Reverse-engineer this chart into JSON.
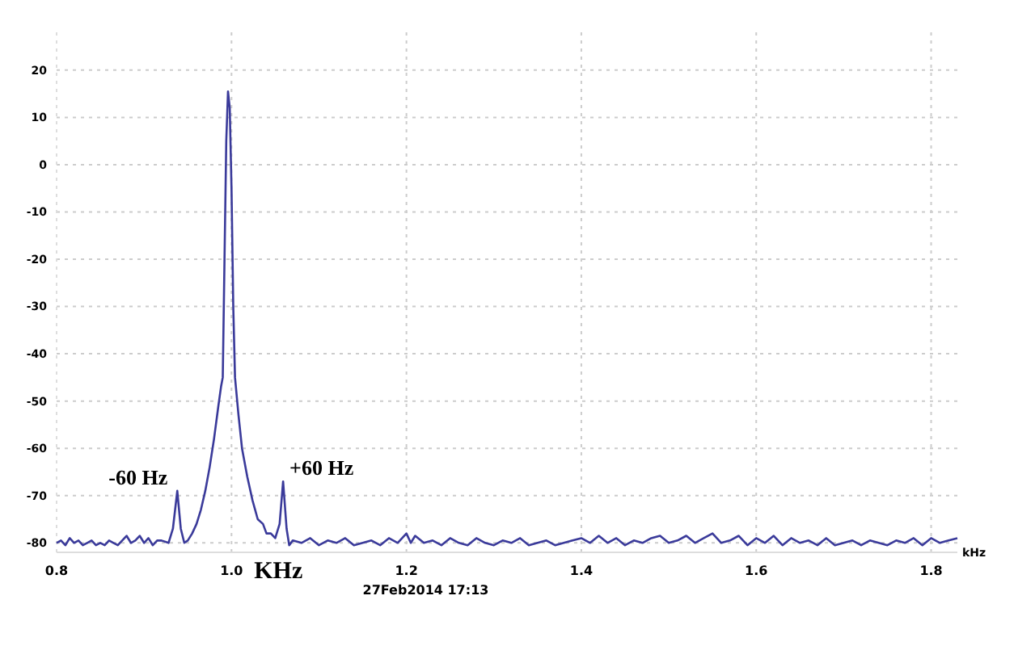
{
  "chart_data": {
    "type": "line",
    "xlabel": "kHz",
    "x": [
      0.8,
      0.805,
      0.81,
      0.815,
      0.82,
      0.825,
      0.83,
      0.835,
      0.84,
      0.845,
      0.85,
      0.855,
      0.86,
      0.865,
      0.87,
      0.875,
      0.88,
      0.885,
      0.89,
      0.895,
      0.9,
      0.905,
      0.91,
      0.915,
      0.92,
      0.928,
      0.933,
      0.938,
      0.942,
      0.946,
      0.95,
      0.955,
      0.96,
      0.965,
      0.97,
      0.975,
      0.98,
      0.985,
      0.988,
      0.99,
      0.992,
      0.994,
      0.996,
      0.998,
      1.0,
      1.002,
      1.004,
      1.008,
      1.012,
      1.018,
      1.024,
      1.03,
      1.036,
      1.04,
      1.045,
      1.05,
      1.055,
      1.059,
      1.063,
      1.066,
      1.07,
      1.08,
      1.09,
      1.1,
      1.11,
      1.12,
      1.13,
      1.14,
      1.15,
      1.16,
      1.17,
      1.18,
      1.19,
      1.2,
      1.205,
      1.21,
      1.22,
      1.23,
      1.24,
      1.25,
      1.26,
      1.27,
      1.28,
      1.29,
      1.3,
      1.31,
      1.32,
      1.33,
      1.34,
      1.35,
      1.36,
      1.37,
      1.38,
      1.39,
      1.4,
      1.41,
      1.42,
      1.43,
      1.44,
      1.45,
      1.46,
      1.47,
      1.48,
      1.49,
      1.5,
      1.51,
      1.52,
      1.53,
      1.54,
      1.55,
      1.56,
      1.57,
      1.58,
      1.59,
      1.6,
      1.61,
      1.62,
      1.63,
      1.64,
      1.65,
      1.66,
      1.67,
      1.68,
      1.69,
      1.7,
      1.71,
      1.72,
      1.73,
      1.74,
      1.75,
      1.76,
      1.77,
      1.78,
      1.79,
      1.8,
      1.81,
      1.82,
      1.83
    ],
    "series": [
      {
        "color": "#3a3a9a",
        "values": [
          -80,
          -79.5,
          -80.5,
          -79,
          -80,
          -79.5,
          -80.5,
          -80,
          -79.5,
          -80.5,
          -80,
          -80.5,
          -79.5,
          -80,
          -80.5,
          -79.5,
          -78.5,
          -80,
          -79.5,
          -78.5,
          -80,
          -79,
          -80.5,
          -79.5,
          -79.5,
          -80,
          -77,
          -69,
          -77,
          -80,
          -79.5,
          -78,
          -76,
          -73,
          -69,
          -64,
          -58,
          -51,
          -47,
          -45,
          -20,
          5,
          15.5,
          12,
          -5,
          -30,
          -45,
          -53,
          -60,
          -66,
          -71,
          -75,
          -76,
          -78,
          -78,
          -79,
          -76,
          -67,
          -77,
          -80.5,
          -79.5,
          -80,
          -79,
          -80.5,
          -79.5,
          -80,
          -79,
          -80.5,
          -80,
          -79.5,
          -80.5,
          -79,
          -80,
          -78,
          -80,
          -78.5,
          -80,
          -79.5,
          -80.5,
          -79,
          -80,
          -80.5,
          -79,
          -80,
          -80.5,
          -79.5,
          -80,
          -79,
          -80.5,
          -80,
          -79.5,
          -80.5,
          -80,
          -79.5,
          -79,
          -80,
          -78.5,
          -80,
          -79,
          -80.5,
          -79.5,
          -80,
          -79,
          -78.5,
          -80,
          -79.5,
          -78.5,
          -80,
          -79,
          -78,
          -80,
          -79.5,
          -78.5,
          -80.5,
          -79,
          -80,
          -78.5,
          -80.5,
          -79,
          -80,
          -79.5,
          -80.5,
          -79,
          -80.5,
          -80,
          -79.5,
          -80.5,
          -79.5,
          -80,
          -80.5,
          -79.5,
          -80,
          -79,
          -80.5,
          -79,
          -80,
          -79.5,
          -79
        ]
      }
    ],
    "xlim": [
      0.8,
      1.83
    ],
    "xticks": [
      0.8,
      {
        "value": 1,
        "label": "1.0"
      },
      1.2,
      1.4,
      1.6,
      1.8
    ],
    "ylim": [
      -82,
      28
    ],
    "yticks": [
      -80,
      -70,
      -60,
      -50,
      -40,
      -30,
      -20,
      -10,
      0,
      10,
      20
    ],
    "grid": true,
    "line_style": "solid",
    "marker": "none",
    "annotations": [
      {
        "text": "-60 Hz",
        "x": 0.938,
        "y": -69
      },
      {
        "text": "+60 Hz",
        "x": 1.059,
        "y": -67
      },
      "KHz",
      "27Feb2014 17:13"
    ]
  }
}
